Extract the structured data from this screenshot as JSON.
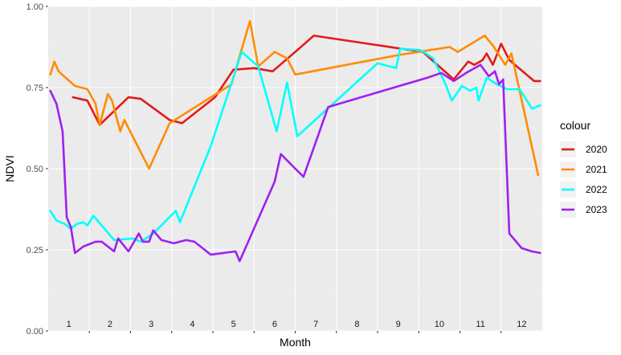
{
  "chart_data": {
    "type": "line",
    "xlabel": "Month",
    "ylabel": "NDVI",
    "ylim": [
      0,
      1
    ],
    "yticks": [
      0.0,
      0.25,
      0.5,
      0.75,
      1.0
    ],
    "ytick_labels": [
      "0.00",
      "0.25",
      "0.50",
      "0.75",
      "1.00"
    ],
    "xlim": [
      0.5,
      12.5
    ],
    "month_labels": [
      "1",
      "2",
      "3",
      "4",
      "5",
      "6",
      "7",
      "8",
      "9",
      "10",
      "11",
      "12"
    ],
    "grid": true,
    "legend_title": "colour",
    "legend_position": "right",
    "series": [
      {
        "name": "2020",
        "color": "#e31a1c",
        "points": [
          [
            1.1,
            0.72
          ],
          [
            1.45,
            0.71
          ],
          [
            1.75,
            0.635
          ],
          [
            2.45,
            0.72
          ],
          [
            2.75,
            0.715
          ],
          [
            3.45,
            0.65
          ],
          [
            3.75,
            0.64
          ],
          [
            4.55,
            0.72
          ],
          [
            5.0,
            0.805
          ],
          [
            5.5,
            0.81
          ],
          [
            5.95,
            0.8
          ],
          [
            6.5,
            0.86
          ],
          [
            6.95,
            0.91
          ],
          [
            9.6,
            0.86
          ],
          [
            10.35,
            0.775
          ],
          [
            10.7,
            0.83
          ],
          [
            10.85,
            0.82
          ],
          [
            11.05,
            0.835
          ],
          [
            11.15,
            0.855
          ],
          [
            11.3,
            0.82
          ],
          [
            11.5,
            0.885
          ],
          [
            11.7,
            0.835
          ],
          [
            12.3,
            0.77
          ],
          [
            12.45,
            0.77
          ]
        ]
      },
      {
        "name": "2021",
        "color": "#ff8c00",
        "points": [
          [
            0.55,
            0.79
          ],
          [
            0.65,
            0.83
          ],
          [
            0.75,
            0.8
          ],
          [
            1.15,
            0.755
          ],
          [
            1.45,
            0.745
          ],
          [
            1.65,
            0.7
          ],
          [
            1.75,
            0.635
          ],
          [
            1.95,
            0.73
          ],
          [
            2.05,
            0.71
          ],
          [
            2.25,
            0.615
          ],
          [
            2.35,
            0.65
          ],
          [
            2.95,
            0.5
          ],
          [
            3.45,
            0.64
          ],
          [
            4.95,
            0.76
          ],
          [
            5.4,
            0.955
          ],
          [
            5.6,
            0.815
          ],
          [
            6.0,
            0.86
          ],
          [
            6.3,
            0.84
          ],
          [
            6.5,
            0.79
          ],
          [
            9.0,
            0.85
          ],
          [
            10.25,
            0.875
          ],
          [
            10.45,
            0.86
          ],
          [
            11.1,
            0.91
          ],
          [
            11.3,
            0.88
          ],
          [
            11.6,
            0.82
          ],
          [
            11.75,
            0.855
          ],
          [
            12.4,
            0.48
          ]
        ]
      },
      {
        "name": "2022",
        "color": "#00ffff",
        "points": [
          [
            0.55,
            0.37
          ],
          [
            0.7,
            0.34
          ],
          [
            0.9,
            0.33
          ],
          [
            1.05,
            0.315
          ],
          [
            1.2,
            0.33
          ],
          [
            1.35,
            0.335
          ],
          [
            1.45,
            0.325
          ],
          [
            1.6,
            0.355
          ],
          [
            2.1,
            0.28
          ],
          [
            2.55,
            0.285
          ],
          [
            2.75,
            0.275
          ],
          [
            3.05,
            0.3
          ],
          [
            3.6,
            0.37
          ],
          [
            3.7,
            0.335
          ],
          [
            4.45,
            0.57
          ],
          [
            5.2,
            0.86
          ],
          [
            5.6,
            0.815
          ],
          [
            6.05,
            0.615
          ],
          [
            6.3,
            0.765
          ],
          [
            6.55,
            0.6
          ],
          [
            8.5,
            0.825
          ],
          [
            8.95,
            0.81
          ],
          [
            9.05,
            0.87
          ],
          [
            9.55,
            0.865
          ],
          [
            9.85,
            0.84
          ],
          [
            10.15,
            0.76
          ],
          [
            10.3,
            0.71
          ],
          [
            10.55,
            0.755
          ],
          [
            10.75,
            0.74
          ],
          [
            10.9,
            0.75
          ],
          [
            10.95,
            0.71
          ],
          [
            11.15,
            0.78
          ],
          [
            11.4,
            0.76
          ],
          [
            11.65,
            0.745
          ],
          [
            11.95,
            0.745
          ],
          [
            12.25,
            0.685
          ],
          [
            12.45,
            0.695
          ]
        ]
      },
      {
        "name": "2023",
        "color": "#a020f0",
        "points": [
          [
            0.55,
            0.74
          ],
          [
            0.7,
            0.7
          ],
          [
            0.85,
            0.615
          ],
          [
            0.95,
            0.35
          ],
          [
            1.05,
            0.32
          ],
          [
            1.15,
            0.24
          ],
          [
            1.35,
            0.26
          ],
          [
            1.65,
            0.275
          ],
          [
            1.8,
            0.275
          ],
          [
            2.1,
            0.245
          ],
          [
            2.2,
            0.285
          ],
          [
            2.45,
            0.245
          ],
          [
            2.7,
            0.3
          ],
          [
            2.8,
            0.275
          ],
          [
            2.95,
            0.275
          ],
          [
            3.05,
            0.31
          ],
          [
            3.25,
            0.28
          ],
          [
            3.55,
            0.27
          ],
          [
            3.85,
            0.28
          ],
          [
            4.05,
            0.275
          ],
          [
            4.45,
            0.235
          ],
          [
            5.05,
            0.245
          ],
          [
            5.15,
            0.215
          ],
          [
            6.0,
            0.46
          ],
          [
            6.15,
            0.545
          ],
          [
            6.5,
            0.5
          ],
          [
            6.7,
            0.475
          ],
          [
            7.3,
            0.69
          ],
          [
            9.7,
            0.78
          ],
          [
            10.05,
            0.795
          ],
          [
            10.35,
            0.77
          ],
          [
            10.65,
            0.795
          ],
          [
            11.0,
            0.82
          ],
          [
            11.2,
            0.785
          ],
          [
            11.35,
            0.8
          ],
          [
            11.45,
            0.76
          ],
          [
            11.55,
            0.775
          ],
          [
            11.7,
            0.3
          ],
          [
            12.0,
            0.255
          ],
          [
            12.25,
            0.245
          ],
          [
            12.45,
            0.24
          ]
        ]
      }
    ]
  }
}
